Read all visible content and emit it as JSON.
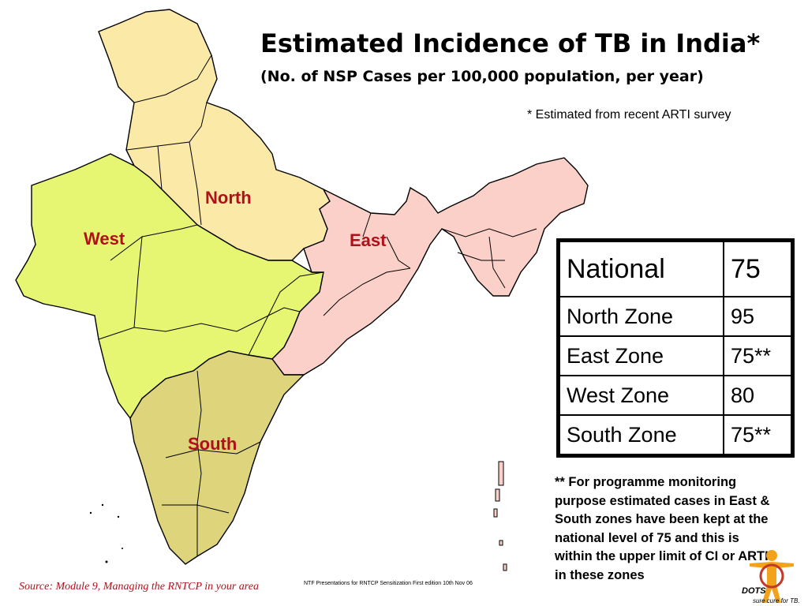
{
  "title": "Estimated Incidence of TB in India*",
  "subtitle": "(No. of NSP Cases per 100,000 population, per year)",
  "footnote": "* Estimated from recent ARTI survey",
  "zones": {
    "north": {
      "label": "North",
      "color": "#fbe9a8"
    },
    "west": {
      "label": "West",
      "color": "#e6f572"
    },
    "east": {
      "label": "East",
      "color": "#fbd0c8"
    },
    "south": {
      "label": "South",
      "color": "#ddd47c"
    }
  },
  "table": {
    "rows": [
      {
        "name": "National",
        "value": "75"
      },
      {
        "name": "North Zone",
        "value": "95"
      },
      {
        "name": "East Zone",
        "value": "75**"
      },
      {
        "name": "West Zone",
        "value": "80"
      },
      {
        "name": "South Zone",
        "value": "75**"
      }
    ]
  },
  "note": "** For programme monitoring purpose estimated cases in East & South zones have been kept at the national level of 75 and this is within the upper limit of CI or ARTI in these zones",
  "source": "Source: Module 9, Managing the RNTCP in your area",
  "ntf_text": "NTF Presentations for RNTCP Sensitization First edition 10th Nov 06",
  "logo": {
    "text_main": "DOTS",
    "text_sub": "sure cure for TB."
  },
  "label_color": "#b0101a"
}
